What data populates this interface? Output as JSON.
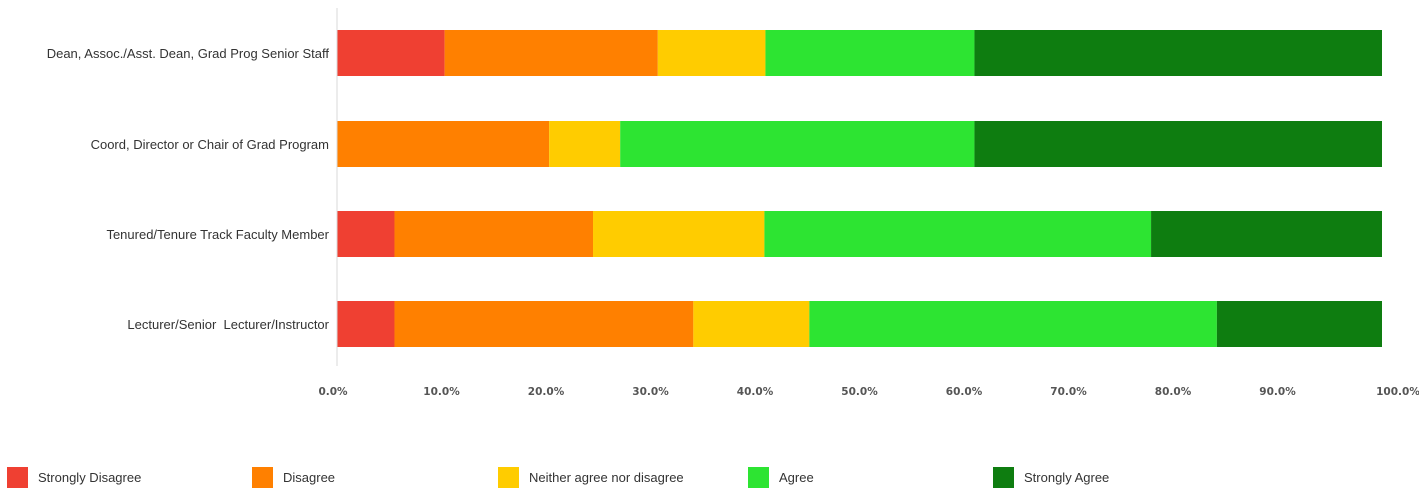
{
  "chart_data": {
    "type": "bar",
    "orientation": "horizontal",
    "stacked": true,
    "categories": [
      "Dean, Assoc./Asst. Dean, Grad Prog Senior Staff",
      "Coord, Director or Chair of Grad Program",
      "Tenured/Tenure Track Faculty Member",
      "Lecturer/Senior  Lecturer/Instructor"
    ],
    "series": [
      {
        "name": "Strongly Disagree",
        "color": "#ef4032",
        "values": [
          10.3,
          0.0,
          5.5,
          5.5
        ]
      },
      {
        "name": "Disagree",
        "color": "#ff8000",
        "values": [
          20.4,
          20.3,
          19.0,
          28.6
        ]
      },
      {
        "name": "Neither agree nor disagree",
        "color": "#ffcc00",
        "values": [
          10.3,
          6.8,
          16.4,
          11.1
        ]
      },
      {
        "name": "Agree",
        "color": "#2de432",
        "values": [
          20.0,
          33.9,
          37.0,
          39.0
        ]
      },
      {
        "name": "Strongly Agree",
        "color": "#0e7d10",
        "values": [
          39.0,
          39.0,
          22.1,
          15.8
        ]
      }
    ],
    "xlim": [
      0,
      100
    ],
    "x_ticks": [
      "0.0%",
      "10.0%",
      "20.0%",
      "30.0%",
      "40.0%",
      "50.0%",
      "60.0%",
      "70.0%",
      "80.0%",
      "90.0%",
      "100.0%"
    ],
    "grid": false,
    "legend_position": "bottom"
  }
}
